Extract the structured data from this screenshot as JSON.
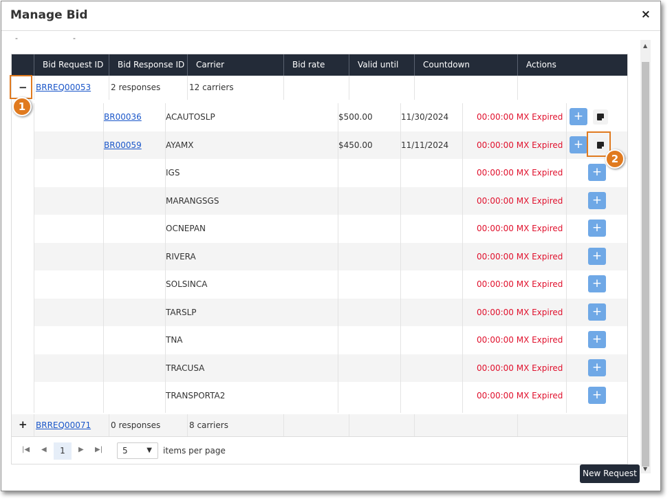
{
  "dialog": {
    "title": "Manage Bid",
    "close_glyph": "×"
  },
  "dashes": [
    "-",
    "-"
  ],
  "grid": {
    "columns": [
      "Bid Request ID",
      "Bid Response ID",
      "Carrier",
      "Bid rate",
      "Valid until",
      "Countdown",
      "Actions"
    ],
    "requests": [
      {
        "toggle": "−",
        "id": "BRREQ00053",
        "responses": "2 responses",
        "carriers": "12 carriers"
      },
      {
        "toggle": "+",
        "id": "BRREQ00071",
        "responses": "0 responses",
        "carriers": "8 carriers"
      }
    ],
    "sub_rows": [
      {
        "response_id": "BR00036",
        "carrier": "ACAUTOSLP",
        "rate": "$500.00",
        "valid": "11/30/2024",
        "countdown": "00:00:00 MX Expired"
      },
      {
        "response_id": "BR00059",
        "carrier": "AYAMX",
        "rate": "$450.00",
        "valid": "11/11/2024",
        "countdown": "00:00:00 MX Expired"
      },
      {
        "response_id": "",
        "carrier": "IGS",
        "rate": "",
        "valid": "",
        "countdown": "00:00:00 MX Expired"
      },
      {
        "response_id": "",
        "carrier": "MARANGSGS",
        "rate": "",
        "valid": "",
        "countdown": "00:00:00 MX Expired"
      },
      {
        "response_id": "",
        "carrier": "OCNEPAN",
        "rate": "",
        "valid": "",
        "countdown": "00:00:00 MX Expired"
      },
      {
        "response_id": "",
        "carrier": "RIVERA",
        "rate": "",
        "valid": "",
        "countdown": "00:00:00 MX Expired"
      },
      {
        "response_id": "",
        "carrier": "SOLSINCA",
        "rate": "",
        "valid": "",
        "countdown": "00:00:00 MX Expired"
      },
      {
        "response_id": "",
        "carrier": "TARSLP",
        "rate": "",
        "valid": "",
        "countdown": "00:00:00 MX Expired"
      },
      {
        "response_id": "",
        "carrier": "TNA",
        "rate": "",
        "valid": "",
        "countdown": "00:00:00 MX Expired"
      },
      {
        "response_id": "",
        "carrier": "TRACUSA",
        "rate": "",
        "valid": "",
        "countdown": "00:00:00 MX Expired"
      },
      {
        "response_id": "",
        "carrier": "TRANSPORTA2",
        "rate": "",
        "valid": "",
        "countdown": "00:00:00 MX Expired"
      }
    ],
    "action_plus": "+"
  },
  "pager": {
    "first": "|◀",
    "prev": "◀",
    "current": "1",
    "next": "▶",
    "last": "▶|",
    "page_size": "5",
    "caret": "▼",
    "label": "items per page"
  },
  "callouts": [
    "1",
    "2"
  ],
  "footer": {
    "new_request": "New Request"
  },
  "icons": {
    "note": "note-icon",
    "plus": "plus-icon",
    "close": "close-icon"
  },
  "colors": {
    "header_bg": "#232b38",
    "link": "#1a56c9",
    "expired": "#e0102c",
    "button": "#6fa8e6",
    "callout": "#e07a1f"
  }
}
